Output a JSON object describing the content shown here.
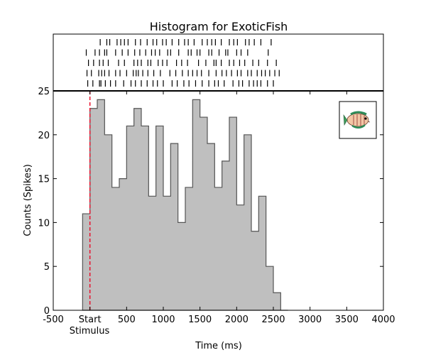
{
  "chart_data": {
    "type": "bar",
    "title": "Histogram for ExoticFish",
    "xlabel": "Time (ms)",
    "ylabel": "Counts (Spikes)",
    "xlim": [
      -500,
      4000
    ],
    "ylim": [
      0,
      25
    ],
    "x_ticks": [
      {
        "value": -500,
        "label": "-500"
      },
      {
        "value": 0,
        "label": "Start"
      },
      {
        "value": 500,
        "label": "500"
      },
      {
        "value": 1000,
        "label": "1000"
      },
      {
        "value": 1500,
        "label": "1500"
      },
      {
        "value": 2000,
        "label": "2000"
      },
      {
        "value": 2500,
        "label": "2500"
      },
      {
        "value": 3000,
        "label": "3000"
      },
      {
        "value": 3500,
        "label": "3500"
      },
      {
        "value": 4000,
        "label": "4000"
      }
    ],
    "y_ticks": [
      0,
      5,
      10,
      15,
      20,
      25
    ],
    "stimulus_marker": {
      "x": 0,
      "label": "Stimulus",
      "color": "#e8112d"
    },
    "bin_width": 100,
    "bin_starts": [
      -100,
      0,
      100,
      200,
      300,
      400,
      500,
      600,
      700,
      800,
      900,
      1000,
      1100,
      1200,
      1300,
      1400,
      1500,
      1600,
      1700,
      1800,
      1900,
      2000,
      2100,
      2200,
      2300,
      2400,
      2500,
      2600
    ],
    "values": [
      11,
      23,
      24,
      20,
      14,
      15,
      21,
      23,
      21,
      13,
      21,
      13,
      19,
      10,
      14,
      24,
      22,
      19,
      14,
      17,
      22,
      12,
      20,
      9,
      13,
      5,
      2,
      0
    ],
    "bar_fill": "#bfbfbf",
    "bar_edge": "#555555",
    "raster": {
      "trials": [
        [
          140,
          230,
          270,
          370,
          420,
          470,
          520,
          620,
          690,
          780,
          860,
          910,
          990,
          1040,
          1120,
          1210,
          1290,
          1340,
          1420,
          1530,
          1600,
          1660,
          1710,
          1790,
          1900,
          1960,
          2010,
          2120,
          2170,
          2240,
          2330,
          2470
        ],
        [
          -50,
          70,
          130,
          200,
          230,
          350,
          440,
          520,
          610,
          680,
          760,
          840,
          890,
          950,
          1060,
          1100,
          1210,
          1340,
          1380,
          1460,
          1500,
          1620,
          1660,
          1760,
          1850,
          1880,
          2000,
          2060,
          2150,
          2430
        ],
        [
          -20,
          50,
          130,
          180,
          250,
          390,
          470,
          600,
          650,
          700,
          790,
          830,
          930,
          990,
          1050,
          1180,
          1250,
          1330,
          1480,
          1580,
          1690,
          1720,
          1790,
          1900,
          1960,
          2040,
          2110,
          2220,
          2300,
          2420,
          2540
        ],
        [
          -40,
          20,
          120,
          160,
          200,
          260,
          350,
          410,
          500,
          590,
          630,
          660,
          720,
          790,
          870,
          960,
          1090,
          1170,
          1260,
          1340,
          1400,
          1460,
          1520,
          1620,
          1720,
          1800,
          1860,
          1930,
          2010,
          2060,
          2150,
          2200,
          2280,
          2340,
          2390,
          2450,
          2520,
          2580
        ],
        [
          -30,
          40,
          130,
          150,
          210,
          280,
          350,
          460,
          560,
          620,
          700,
          780,
          860,
          920,
          1000,
          1120,
          1190,
          1280,
          1350,
          1440,
          1530,
          1620,
          1700,
          1750,
          1830,
          1950,
          2030,
          2080,
          2170,
          2230,
          2280,
          2330,
          2420,
          2500
        ]
      ],
      "color": "#000000"
    },
    "inset_image": "tropical-fish-icon",
    "grid": false
  }
}
